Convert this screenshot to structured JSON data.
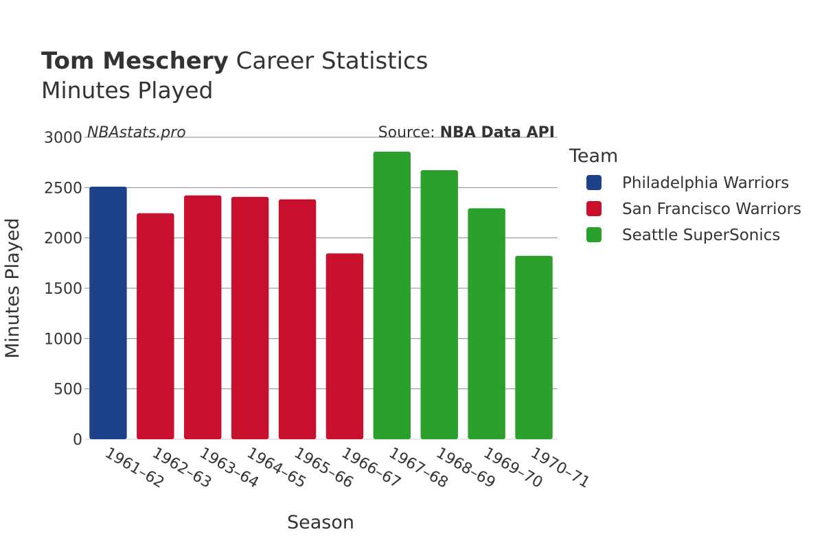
{
  "chart_data": {
    "type": "bar",
    "title": {
      "bold": "Tom Meschery",
      "rest": " Career Statistics"
    },
    "subtitle": "Minutes Played",
    "watermark": "NBAstats.pro",
    "source": {
      "prefix": "Source: ",
      "bold": "NBA Data API"
    },
    "xlabel": "Season",
    "ylabel": "Minutes Played",
    "ylim": [
      0,
      3000
    ],
    "yticks": [
      0,
      500,
      1000,
      1500,
      2000,
      2500,
      3000
    ],
    "yticks_labels": [
      "0",
      "500",
      "1000",
      "1500",
      "2000",
      "2500",
      "3000"
    ],
    "categories": [
      "1961–62",
      "1962–63",
      "1963–64",
      "1964–65",
      "1965–66",
      "1966–67",
      "1967–68",
      "1968–69",
      "1969–70",
      "1970–71"
    ],
    "values": [
      2509,
      2245,
      2422,
      2408,
      2383,
      1846,
      2857,
      2673,
      2294,
      1822
    ],
    "teams": [
      "Philadelphia Warriors",
      "San Francisco Warriors",
      "San Francisco Warriors",
      "San Francisco Warriors",
      "San Francisco Warriors",
      "San Francisco Warriors",
      "Seattle SuperSonics",
      "Seattle SuperSonics",
      "Seattle SuperSonics",
      "Seattle SuperSonics"
    ],
    "legend": {
      "title": "Team",
      "position": "right",
      "entries": [
        {
          "name": "Philadelphia Warriors",
          "color": "#1d428a"
        },
        {
          "name": "San Francisco Warriors",
          "color": "#c8102e"
        },
        {
          "name": "Seattle SuperSonics",
          "color": "#2ca02c"
        }
      ]
    },
    "grid": true
  }
}
